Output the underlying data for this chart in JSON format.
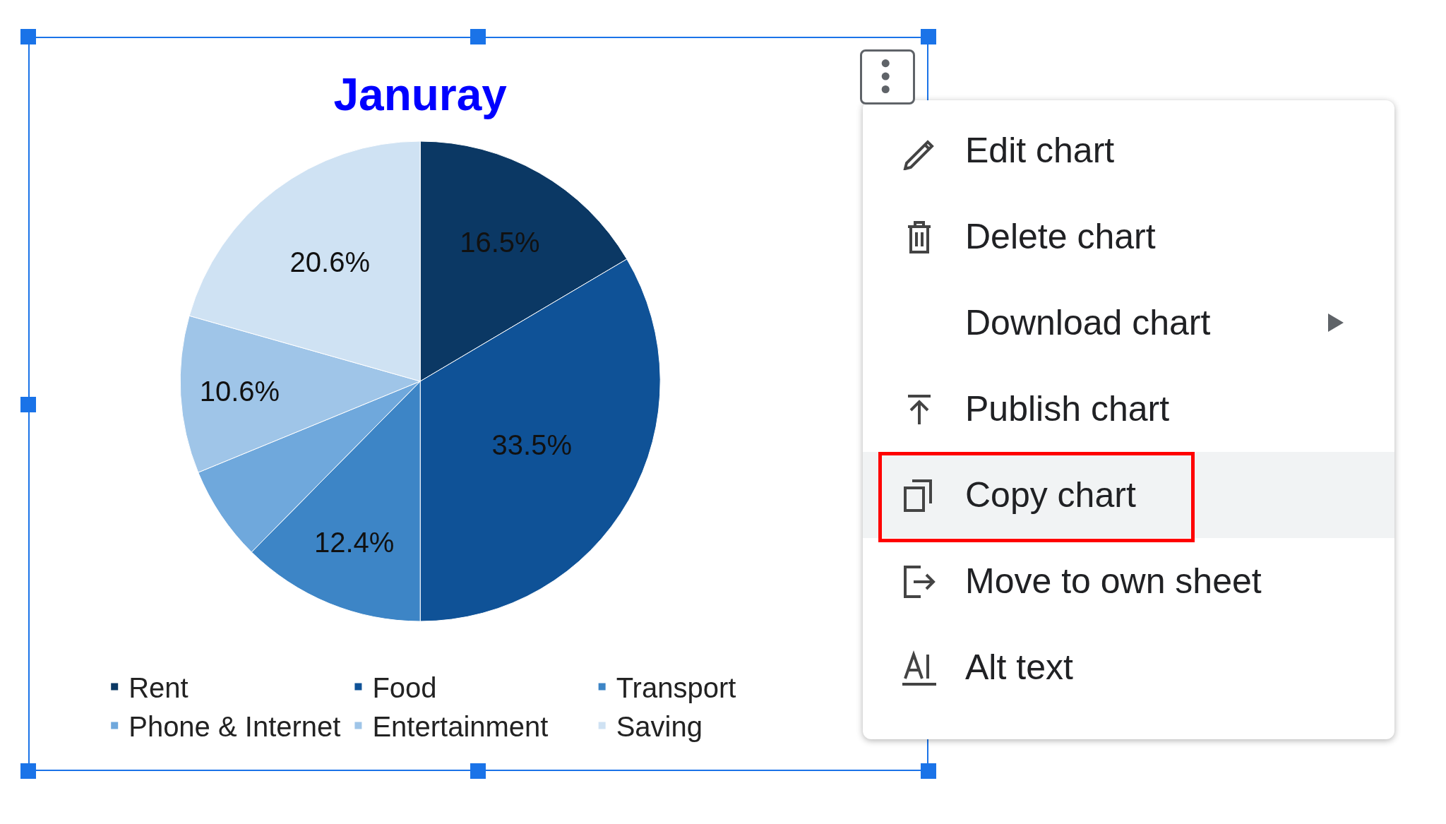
{
  "chart_data": [
    {
      "type": "pie",
      "title": "Januray",
      "categories": [
        "Rent",
        "Food",
        "Transport",
        "Phone & Internet",
        "Entertainment",
        "Saving"
      ],
      "values": [
        16.5,
        33.5,
        12.4,
        6.4,
        10.6,
        20.6
      ],
      "value_labels": [
        "16.5%",
        "33.5%",
        "12.4%",
        null,
        "10.6%",
        "20.6%"
      ],
      "colors": [
        "#0b3864",
        "#0f5297",
        "#3d85c6",
        "#6fa8dc",
        "#9fc5e8",
        "#cfe2f3"
      ],
      "legend": "bottom"
    },
    {
      "type": "other",
      "annotations": [
        "Edit chart",
        "Delete chart",
        "Download chart",
        "Publish chart",
        "Copy chart",
        "Move to own sheet",
        "Alt text"
      ]
    }
  ]
}
